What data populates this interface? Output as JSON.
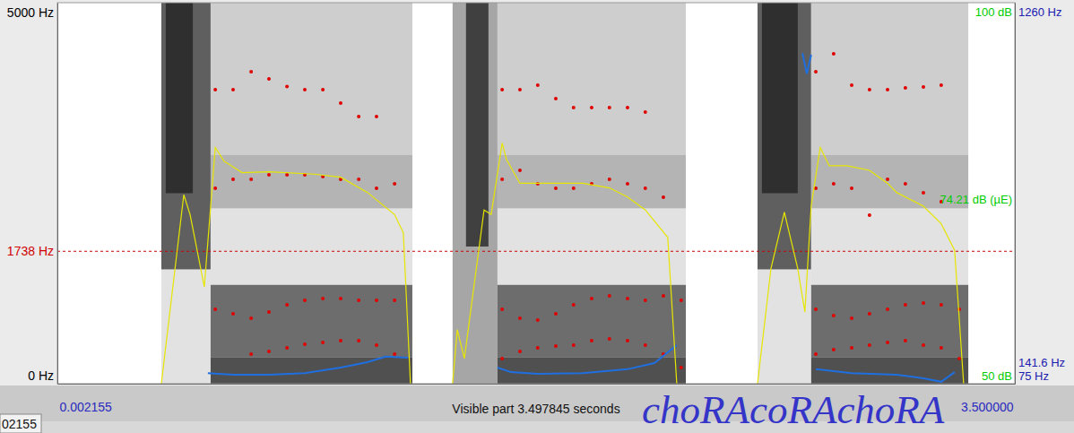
{
  "chart_data": {
    "type": "spectrogram",
    "title": "choRAcoRAchoRA",
    "xlabel": "Visible part 3.497845 seconds",
    "xlim": [
      0.002155,
      3.5
    ],
    "xticks": [
      0.002155,
      {
        "value": 3.5,
        "label": "3.500000"
      }
    ],
    "ylim": [
      0,
      5000
    ],
    "yticks": [
      {
        "value": 0,
        "label": "0 Hz"
      },
      {
        "value": 5000,
        "label": "5000 Hz"
      }
    ],
    "y2lim": [
      75,
      1260
    ],
    "y2ticks": [
      {
        "value": 75,
        "label": "75 Hz"
      },
      {
        "value": 1260,
        "label": "1260 Hz"
      }
    ],
    "y3lim": [
      50,
      100
    ],
    "y3ticks": [
      {
        "value": 50,
        "label": "50 dB"
      },
      {
        "value": 100,
        "label": "100 dB"
      }
    ],
    "grid": false,
    "annotations": [
      {
        "y": 1738,
        "label": "1738 Hz",
        "color": "#d00000",
        "line_style": "dashed"
      },
      {
        "axis": "y2",
        "y": 141.6,
        "label": "141.6 Hz"
      },
      {
        "axis": "y3",
        "y": 74.21,
        "label": "74.21 dB (µE)"
      },
      {
        "text": "02155"
      }
    ],
    "spectrogram": {
      "blocks": [
        {
          "t0": 0.382,
          "t1": 0.562,
          "f0": 0,
          "f1": 1500,
          "level": 0.2
        },
        {
          "t0": 0.382,
          "t1": 0.562,
          "f0": 1500,
          "f1": 5000,
          "level": 0.7
        },
        {
          "t0": 0.398,
          "t1": 0.497,
          "f0": 2500,
          "f1": 5000,
          "level": 0.85
        },
        {
          "t0": 0.562,
          "t1": 1.299,
          "f0": 0,
          "f1": 350,
          "level": 0.75
        },
        {
          "t0": 0.562,
          "t1": 1.299,
          "f0": 350,
          "f1": 1300,
          "level": 0.65
        },
        {
          "t0": 0.562,
          "t1": 1.299,
          "f0": 1300,
          "f1": 2300,
          "level": 0.2
        },
        {
          "t0": 0.562,
          "t1": 1.299,
          "f0": 2300,
          "f1": 3000,
          "level": 0.4
        },
        {
          "t0": 0.562,
          "t1": 1.299,
          "f0": 3000,
          "f1": 5000,
          "level": 0.3
        },
        {
          "t0": 1.446,
          "t1": 1.61,
          "f0": 0,
          "f1": 5000,
          "level": 0.45
        },
        {
          "t0": 1.495,
          "t1": 1.577,
          "f0": 1800,
          "f1": 5000,
          "level": 0.8
        },
        {
          "t0": 1.61,
          "t1": 2.298,
          "f0": 0,
          "f1": 350,
          "level": 0.75
        },
        {
          "t0": 1.61,
          "t1": 2.298,
          "f0": 350,
          "f1": 1300,
          "level": 0.65
        },
        {
          "t0": 1.61,
          "t1": 2.298,
          "f0": 1300,
          "f1": 2300,
          "level": 0.2
        },
        {
          "t0": 1.61,
          "t1": 2.298,
          "f0": 2300,
          "f1": 3000,
          "level": 0.4
        },
        {
          "t0": 1.61,
          "t1": 2.298,
          "f0": 3000,
          "f1": 5000,
          "level": 0.3
        },
        {
          "t0": 2.56,
          "t1": 2.756,
          "f0": 0,
          "f1": 1500,
          "level": 0.2
        },
        {
          "t0": 2.56,
          "t1": 2.756,
          "f0": 1500,
          "f1": 5000,
          "level": 0.7
        },
        {
          "t0": 2.576,
          "t1": 2.707,
          "f0": 2500,
          "f1": 5000,
          "level": 0.85
        },
        {
          "t0": 2.756,
          "t1": 3.33,
          "f0": 0,
          "f1": 350,
          "level": 0.75
        },
        {
          "t0": 2.756,
          "t1": 3.33,
          "f0": 350,
          "f1": 1300,
          "level": 0.65
        },
        {
          "t0": 2.756,
          "t1": 3.33,
          "f0": 1300,
          "f1": 2300,
          "level": 0.2
        },
        {
          "t0": 2.756,
          "t1": 3.33,
          "f0": 2300,
          "f1": 3000,
          "level": 0.4
        },
        {
          "t0": 2.756,
          "t1": 3.33,
          "f0": 3000,
          "f1": 5000,
          "level": 0.3
        }
      ]
    },
    "series": [
      {
        "type": "scatter",
        "color": "#e00000",
        "marker": "circle",
        "x": [
          0.579,
          0.644,
          0.71,
          0.775,
          0.841,
          0.906,
          0.972,
          1.037,
          1.103,
          1.168,
          1.234,
          1.627,
          1.692,
          1.757,
          1.823,
          1.888,
          1.954,
          2.019,
          2.085,
          2.15,
          2.216,
          2.281,
          2.773,
          2.838,
          2.904,
          2.969,
          3.035,
          3.1,
          3.166,
          3.231,
          3.297
        ],
        "values": [
          null,
          null,
          388,
          424,
          471,
          518,
          541,
          565,
          565,
          506,
          388,
          329,
          424,
          471,
          494,
          506,
          565,
          588,
          565,
          506,
          388,
          212,
          388,
          447,
          471,
          506,
          541,
          565,
          506,
          471,
          329
        ]
      },
      {
        "type": "scatter",
        "color": "#e00000",
        "marker": "circle",
        "x": [
          0.579,
          0.644,
          0.71,
          0.775,
          0.841,
          0.906,
          0.972,
          1.037,
          1.103,
          1.168,
          1.234,
          1.627,
          1.692,
          1.757,
          1.823,
          1.888,
          1.954,
          2.019,
          2.085,
          2.15,
          2.216,
          2.281,
          2.773,
          2.838,
          2.904,
          2.969,
          3.035,
          3.1,
          3.166,
          3.231,
          3.297
        ],
        "values": [
          976,
          918,
          859,
          941,
          1035,
          1094,
          1118,
          1118,
          1094,
          1094,
          1094,
          976,
          859,
          835,
          918,
          1035,
          1118,
          1153,
          1118,
          1094,
          1153,
          1094,
          976,
          894,
          859,
          918,
          976,
          1035,
          1059,
          1035,
          976
        ]
      },
      {
        "type": "scatter",
        "color": "#e00000",
        "marker": "circle",
        "x": [
          0.579,
          0.644,
          0.71,
          0.775,
          0.841,
          0.906,
          0.972,
          1.037,
          1.103,
          1.168,
          1.234,
          1.627,
          1.692,
          1.757,
          1.823,
          1.888,
          1.954,
          2.019,
          2.085,
          2.15,
          2.216,
          2.281,
          2.773,
          2.838,
          2.904,
          2.969,
          3.035,
          3.1,
          3.166,
          3.231,
          3.297
        ],
        "values": [
          2565,
          2682,
          2682,
          2741,
          2741,
          2741,
          2718,
          2682,
          2682,
          2565,
          2624,
          2682,
          2800,
          2624,
          2565,
          2565,
          2624,
          2682,
          2624,
          2565,
          2447,
          null,
          2565,
          2624,
          2565,
          2212,
          2682,
          2624,
          2506,
          2388,
          null
        ]
      },
      {
        "type": "scatter",
        "color": "#e00000",
        "marker": "circle",
        "x": [
          0.579,
          0.644,
          0.71,
          0.775,
          0.841,
          0.906,
          0.972,
          1.037,
          1.103,
          1.168,
          1.234,
          1.627,
          1.692,
          1.757,
          1.823,
          1.888,
          1.954,
          2.019,
          2.085,
          2.15,
          2.216,
          2.281,
          2.773,
          2.838,
          2.904,
          2.969,
          3.035,
          3.1,
          3.166,
          3.231,
          3.297
        ],
        "values": [
          3859,
          3859,
          4094,
          4000,
          3900,
          3859,
          3859,
          3682,
          3506,
          3506,
          null,
          3859,
          3859,
          3918,
          3741,
          3624,
          3624,
          3624,
          3624,
          3565,
          null,
          null,
          4094,
          4329,
          3918,
          3859,
          3859,
          3882,
          3894,
          3918,
          null
        ]
      },
      {
        "type": "line",
        "color": "#1f6fe0",
        "axis": "y2",
        "x": [
          0.552,
          0.644,
          0.775,
          0.906,
          1.037,
          1.135,
          1.201,
          1.283,
          1.45,
          1.61,
          1.659,
          1.757,
          1.921,
          2.085,
          2.183,
          2.265,
          2.5,
          2.724,
          2.74,
          2.756,
          2.765,
          2.773,
          2.904,
          3.068,
          3.166,
          3.231,
          3.28
        ],
        "values": [
          108,
          103,
          103,
          108,
          125,
          142,
          159,
          156,
          null,
          125,
          111,
          106,
          108,
          120,
          139,
          195,
          null,
          1103,
          1039,
          1098,
          null,
          120,
          108,
          103,
          92,
          81,
          111
        ]
      },
      {
        "type": "line",
        "color": "#e6e600",
        "axis": "y3",
        "x": [
          0.382,
          0.464,
          0.487,
          0.539,
          0.579,
          0.611,
          0.677,
          0.775,
          0.939,
          1.037,
          1.135,
          1.234,
          1.266,
          1.292,
          1.35,
          1.446,
          1.463,
          1.489,
          1.561,
          1.587,
          1.627,
          1.643,
          1.692,
          1.757,
          1.921,
          2.019,
          2.085,
          2.15,
          2.232,
          2.265,
          2.4,
          2.56,
          2.609,
          2.658,
          2.707,
          2.733,
          2.756,
          2.789,
          2.822,
          2.887,
          2.969,
          3.035,
          3.068,
          3.166,
          3.231,
          3.28,
          3.313
        ],
        "values": [
          50,
          74.8,
          72.2,
          62.7,
          81,
          79.2,
          77.7,
          77.8,
          77.5,
          77.1,
          75.1,
          72.2,
          69.8,
          50,
          null,
          50,
          57.1,
          53.3,
          72.8,
          72.2,
          81.6,
          79.4,
          76.3,
          76.3,
          76.3,
          75.7,
          74.5,
          72.8,
          69.2,
          50,
          null,
          50,
          65.1,
          72.5,
          65.1,
          59.4,
          73.3,
          81,
          78.6,
          78.6,
          78,
          76.3,
          75.1,
          73.3,
          71,
          67.5,
          50
        ]
      }
    ]
  }
}
